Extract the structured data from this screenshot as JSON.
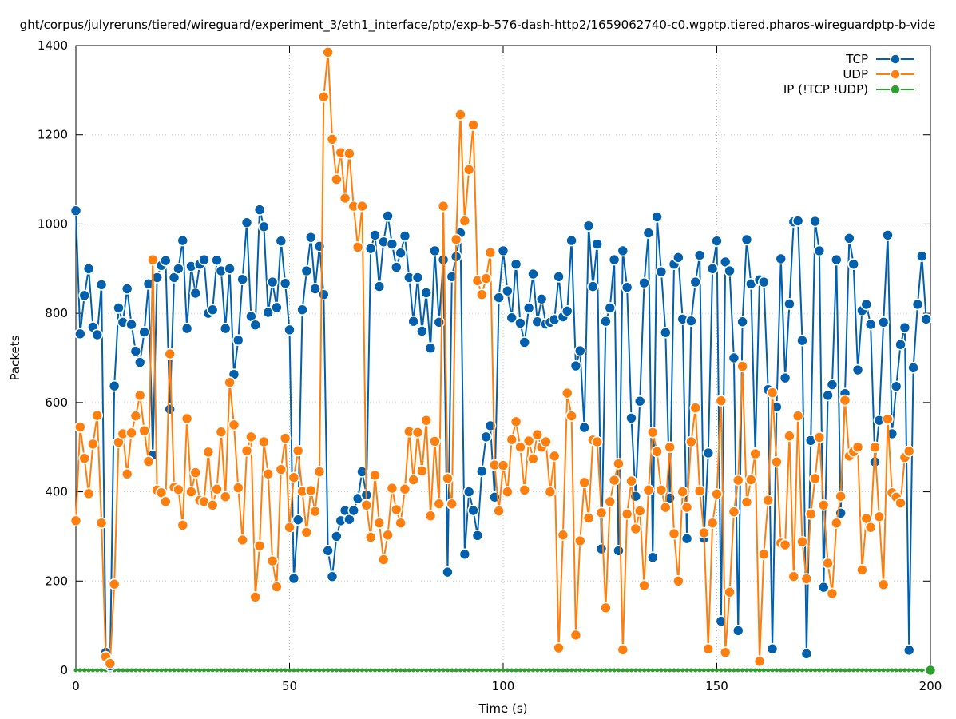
{
  "chart_data": {
    "type": "line",
    "title": "ght/corpus/julyreruns/tiered/wireguard/experiment_3/eth1_interface/ptp/exp-b-576-dash-http2/1659062740-c0.wgptp.tiered.pharos-wireguardptp-b-vide",
    "xlabel": "Time (s)",
    "ylabel": "Packets",
    "xlim": [
      0,
      200
    ],
    "ylim": [
      0,
      1400
    ],
    "x_ticks": [
      "0",
      "50",
      "100",
      "150",
      "200"
    ],
    "y_ticks": [
      "0",
      "200",
      "400",
      "600",
      "800",
      "1000",
      "1200",
      "1400"
    ],
    "grid": true,
    "legend_position": "top-right",
    "colors": {
      "TCP": "#0060ad",
      "UDP": "#ff7f0e",
      "IP": "#2ca02c"
    },
    "series": [
      {
        "name": "TCP",
        "legend": "TCP",
        "values": [
          1030,
          754,
          840,
          900,
          769,
          752,
          864,
          40,
          10,
          637,
          812,
          780,
          855,
          775,
          715,
          690,
          758,
          866,
          482,
          880,
          907,
          918,
          585,
          880,
          900,
          963,
          766,
          905,
          845,
          910,
          920,
          800,
          808,
          919,
          895,
          766,
          900,
          663,
          740,
          876,
          1003,
          793,
          774,
          1032,
          994,
          802,
          870,
          813,
          962,
          867,
          763,
          206,
          337,
          808,
          895,
          970,
          855,
          950,
          842,
          268,
          210,
          300,
          335,
          358,
          338,
          358,
          385,
          445,
          393,
          945,
          975,
          860,
          960,
          1018,
          955,
          903,
          935,
          973,
          880,
          782,
          880,
          760,
          846,
          722,
          940,
          780,
          920,
          220,
          882,
          927,
          980,
          260,
          400,
          358,
          302,
          446,
          523,
          548,
          388,
          835,
          940,
          850,
          790,
          910,
          778,
          735,
          812,
          888,
          781,
          832,
          776,
          780,
          786,
          882,
          792,
          805,
          963,
          682,
          716,
          544,
          996,
          860,
          955,
          272,
          782,
          812,
          920,
          268,
          940,
          858,
          565,
          390,
          603,
          868,
          980,
          253,
          1016,
          893,
          757,
          386,
          910,
          925,
          787,
          295,
          783,
          870,
          930,
          296,
          487,
          900,
          962,
          110,
          915,
          895,
          700,
          89,
          781,
          965,
          866,
          487,
          875,
          870,
          629,
          48,
          590,
          922,
          655,
          821,
          1005,
          1007,
          739,
          37,
          515,
          1006,
          940,
          186,
          616,
          640,
          920,
          352,
          620,
          968,
          910,
          673,
          806,
          820,
          775,
          467,
          560,
          780,
          975,
          530,
          636,
          730,
          768,
          45,
          678,
          820,
          928,
          787
        ]
      },
      {
        "name": "UDP",
        "legend": "UDP",
        "values": [
          335,
          545,
          475,
          396,
          507,
          571,
          330,
          30,
          15,
          193,
          511,
          530,
          440,
          532,
          570,
          616,
          537,
          468,
          920,
          404,
          398,
          378,
          709,
          410,
          405,
          325,
          564,
          400,
          443,
          381,
          378,
          489,
          370,
          406,
          534,
          389,
          645,
          550,
          409,
          292,
          492,
          523,
          164,
          279,
          512,
          440,
          245,
          187,
          450,
          520,
          320,
          432,
          492,
          401,
          309,
          403,
          356,
          445,
          1285,
          1385,
          1190,
          1100,
          1160,
          1058,
          1158,
          1040,
          948,
          1040,
          370,
          298,
          437,
          330,
          248,
          303,
          408,
          360,
          330,
          406,
          535,
          427,
          533,
          447,
          560,
          346,
          513,
          373,
          1040,
          430,
          373,
          965,
          1245,
          1007,
          1122,
          1222,
          873,
          842,
          878,
          936,
          460,
          357,
          459,
          400,
          517,
          557,
          500,
          404,
          514,
          474,
          528,
          500,
          512,
          400,
          480,
          50,
          303,
          621,
          570,
          79,
          290,
          421,
          341,
          516,
          512,
          353,
          140,
          378,
          426,
          463,
          46,
          350,
          424,
          317,
          357,
          190,
          404,
          533,
          490,
          404,
          365,
          500,
          306,
          200,
          400,
          365,
          512,
          588,
          402,
          308,
          48,
          330,
          395,
          604,
          40,
          175,
          355,
          426,
          681,
          377,
          427,
          485,
          20,
          260,
          381,
          622,
          467,
          285,
          281,
          525,
          210,
          570,
          288,
          205,
          350,
          430,
          522,
          370,
          240,
          172,
          330,
          390,
          605,
          480,
          490,
          500,
          225,
          340,
          320,
          500,
          344,
          192,
          563,
          398,
          388,
          375,
          477,
          491
        ]
      },
      {
        "name": "IP",
        "legend": "IP (!TCP  !UDP)",
        "values": [
          0,
          0,
          0,
          0,
          0,
          0,
          0,
          0,
          0,
          0,
          0,
          0,
          0,
          0,
          0,
          0,
          0,
          0,
          0,
          0,
          0,
          0,
          0,
          0,
          0,
          0,
          0,
          0,
          0,
          0,
          0,
          0,
          0,
          0,
          0,
          0,
          0,
          0,
          0,
          0,
          0,
          0,
          0,
          0,
          0,
          0,
          0,
          0,
          0,
          0,
          0,
          0,
          0,
          0,
          0,
          0,
          0,
          0,
          0,
          0,
          0,
          0,
          0,
          0,
          0,
          0,
          0,
          0,
          0,
          0,
          0,
          0,
          0,
          0,
          0,
          0,
          0,
          0,
          0,
          0,
          0,
          0,
          0,
          0,
          0,
          0,
          0,
          0,
          0,
          0,
          0,
          0,
          0,
          0,
          0,
          0,
          0,
          0,
          0,
          0,
          0,
          0,
          0,
          0,
          0,
          0,
          0,
          0,
          0,
          0,
          0,
          0,
          0,
          0,
          0,
          0,
          0,
          0,
          0,
          0,
          0,
          0,
          0,
          0,
          0,
          0,
          0,
          0,
          0,
          0,
          0,
          0,
          0,
          0,
          0,
          0,
          0,
          0,
          0,
          0,
          0,
          0,
          0,
          0,
          0,
          0,
          0,
          0,
          0,
          0,
          0,
          0,
          0,
          0,
          0,
          0,
          0,
          0,
          0,
          0,
          0,
          0,
          0,
          0,
          0,
          0,
          0,
          0,
          0,
          0,
          0,
          0,
          0,
          0,
          0,
          0,
          0,
          0,
          0,
          0,
          0,
          0,
          0,
          0,
          0,
          0,
          0,
          0,
          0,
          0,
          0,
          0,
          0,
          0,
          0,
          0,
          0,
          0,
          0,
          0,
          0
        ]
      }
    ]
  }
}
